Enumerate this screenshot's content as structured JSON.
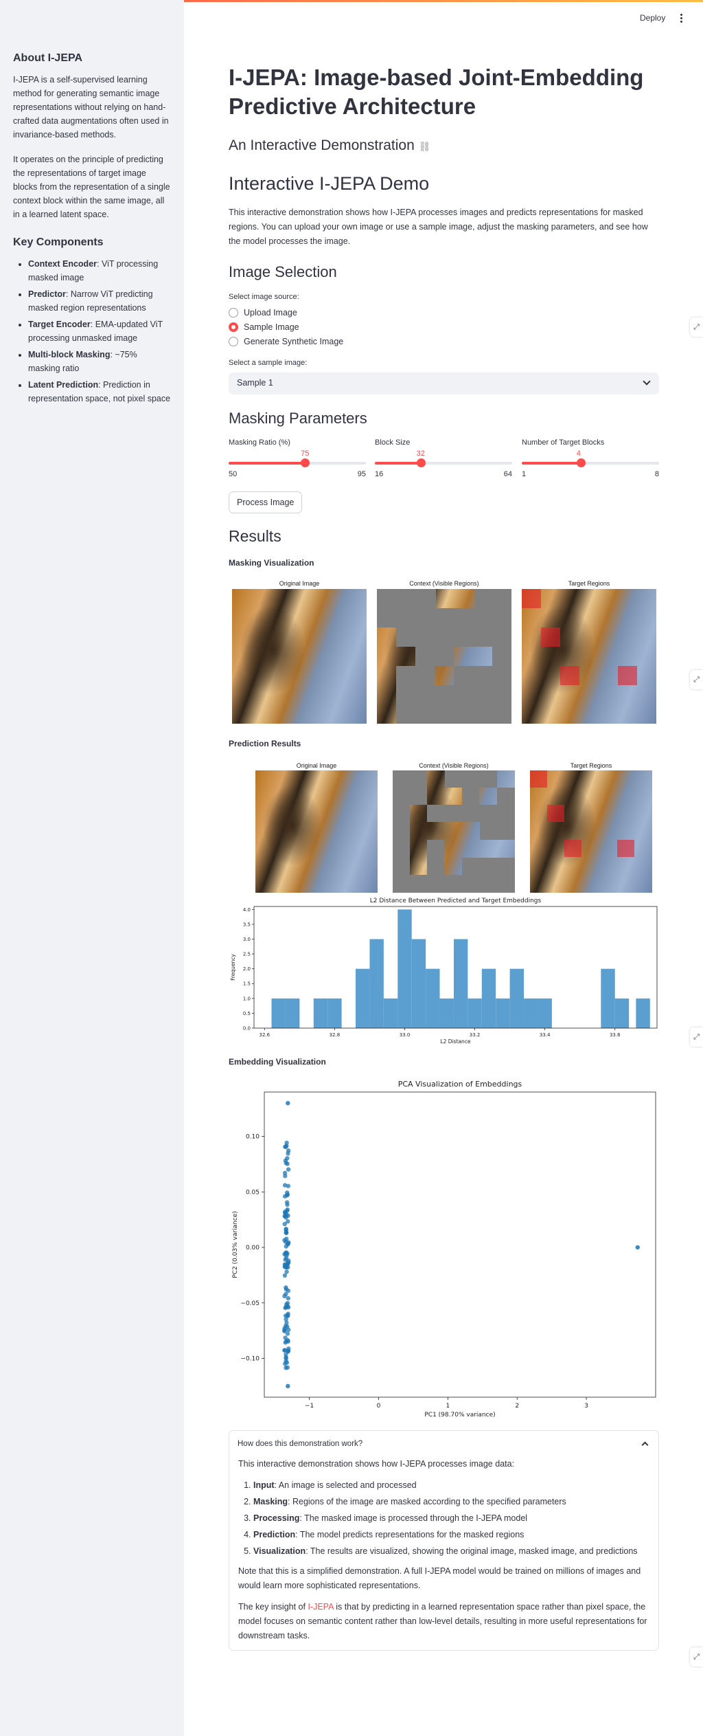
{
  "header": {
    "deploy_label": "Deploy",
    "menu_icon": "kebab-menu-icon"
  },
  "sidebar": {
    "about_title": "About I-JEPA",
    "about_p1": "I-JEPA is a self-supervised learning method for generating semantic image representations without relying on hand-crafted data augmentations often used in invariance-based methods.",
    "about_p2": "It operates on the principle of predicting the representations of target image blocks from the representation of a single context block within the same image, all in a learned latent space.",
    "components_title": "Key Components",
    "components": [
      {
        "name": "Context Encoder",
        "desc": ": ViT processing masked image"
      },
      {
        "name": "Predictor",
        "desc": ": Narrow ViT predicting masked region representations"
      },
      {
        "name": "Target Encoder",
        "desc": ": EMA-updated ViT processing unmasked image"
      },
      {
        "name": "Multi-block Masking",
        "desc": ": ~75% masking ratio"
      },
      {
        "name": "Latent Prediction",
        "desc": ": Prediction in representation space, not pixel space"
      }
    ]
  },
  "main": {
    "title": "I-JEPA: Image-based Joint-Embedding Predictive Architecture",
    "subtitle": "An Interactive Demonstration",
    "demo_title": "Interactive I-JEPA Demo",
    "demo_desc": "This interactive demonstration shows how I-JEPA processes images and predicts representations for masked regions. You can upload your own image or use a sample image, adjust the masking parameters, and see how the model processes the image.",
    "image_selection_title": "Image Selection",
    "image_source_label": "Select image source:",
    "image_source_options": [
      "Upload Image",
      "Sample Image",
      "Generate Synthetic Image"
    ],
    "image_source_selected": 1,
    "sample_label": "Select a sample image:",
    "sample_value": "Sample 1",
    "masking_title": "Masking Parameters",
    "sliders": [
      {
        "label": "Masking Ratio (%)",
        "value": 75,
        "min": 50,
        "max": 95,
        "value_text": "75",
        "min_text": "50",
        "max_text": "95"
      },
      {
        "label": "Block Size",
        "value": 32,
        "min": 16,
        "max": 64,
        "value_text": "32",
        "min_text": "16",
        "max_text": "64"
      },
      {
        "label": "Number of Target Blocks",
        "value": 4,
        "min": 1,
        "max": 8,
        "value_text": "4",
        "min_text": "1",
        "max_text": "8"
      }
    ],
    "process_button": "Process Image",
    "results_title": "Results",
    "masking_viz_title": "Masking Visualization",
    "panel_titles": [
      "Original Image",
      "Context (Visible Regions)",
      "Target Regions"
    ],
    "prediction_title": "Prediction Results",
    "embedding_title": "Embedding Visualization"
  },
  "chart_data": [
    {
      "type": "bar",
      "title": "L2 Distance Between Predicted and Target Embeddings",
      "xlabel": "L2 Distance",
      "ylabel": "Frequency",
      "xlim": [
        32.57,
        33.72
      ],
      "ylim": [
        0,
        4.1
      ],
      "x_ticks": [
        "32.6",
        "32.8",
        "33.0",
        "33.2",
        "33.4",
        "33.6"
      ],
      "y_ticks": [
        "0.0",
        "0.5",
        "1.0",
        "1.5",
        "2.0",
        "2.5",
        "3.0",
        "3.5",
        "4.0"
      ],
      "bin_width": 0.04,
      "bins_start": [
        32.62,
        32.66,
        32.74,
        32.78,
        32.86,
        32.9,
        32.94,
        32.98,
        33.02,
        33.06,
        33.1,
        33.14,
        33.18,
        33.22,
        33.26,
        33.3,
        33.34,
        33.38,
        33.56,
        33.6,
        33.66
      ],
      "values": [
        1,
        1,
        1,
        1,
        2,
        3,
        1,
        4,
        3,
        2,
        1,
        3,
        1,
        2,
        1,
        2,
        1,
        1,
        2,
        1,
        1
      ],
      "color": "#5b9fd1"
    },
    {
      "type": "scatter",
      "title": "PCA Visualization of Embeddings",
      "xlabel": "PC1 (98.70% variance)",
      "ylabel": "PC2 (0.03% variance)",
      "xlim": [
        -1.65,
        4.0
      ],
      "ylim": [
        -0.135,
        0.14
      ],
      "x_ticks": [
        -1,
        0,
        1,
        2,
        3
      ],
      "y_ticks": [
        -0.1,
        -0.05,
        0.0,
        0.05,
        0.1
      ],
      "x_tick_labels": [
        "−1",
        "0",
        "1",
        "2",
        "3"
      ],
      "y_tick_labels": [
        "−0.10",
        "−0.05",
        "0.00",
        "0.05",
        "0.10"
      ],
      "color": "#1f77b4",
      "cluster": {
        "x_center": -1.33,
        "x_spread": 0.03,
        "y_min": -0.11,
        "y_max": 0.1,
        "count": 110
      },
      "points": [
        [
          -1.31,
          0.13
        ],
        [
          -1.31,
          -0.125
        ],
        [
          3.74,
          0.0
        ]
      ]
    }
  ],
  "expander": {
    "title": "How does this demonstration work?",
    "intro": "This interactive demonstration shows how I-JEPA processes image data:",
    "steps": [
      {
        "name": "Input",
        "desc": ": An image is selected and processed"
      },
      {
        "name": "Masking",
        "desc": ": Regions of the image are masked according to the specified parameters"
      },
      {
        "name": "Processing",
        "desc": ": The masked image is processed through the I-JEPA model"
      },
      {
        "name": "Prediction",
        "desc": ": The model predicts representations for the masked regions"
      },
      {
        "name": "Visualization",
        "desc": ": The results are visualized, showing the original image, masked image, and predictions"
      }
    ],
    "note": "Note that this is a simplified demonstration. A full I-JEPA model would be trained on millions of images and would learn more sophisticated representations.",
    "insight_pre": "The key insight of ",
    "insight_highlight": "I-JEPA",
    "insight_post": " is that by predicting in a learned representation space rather than pixel space, the model focuses on semantic content rather than low-level details, resulting in more useful representations for downstream tasks."
  }
}
